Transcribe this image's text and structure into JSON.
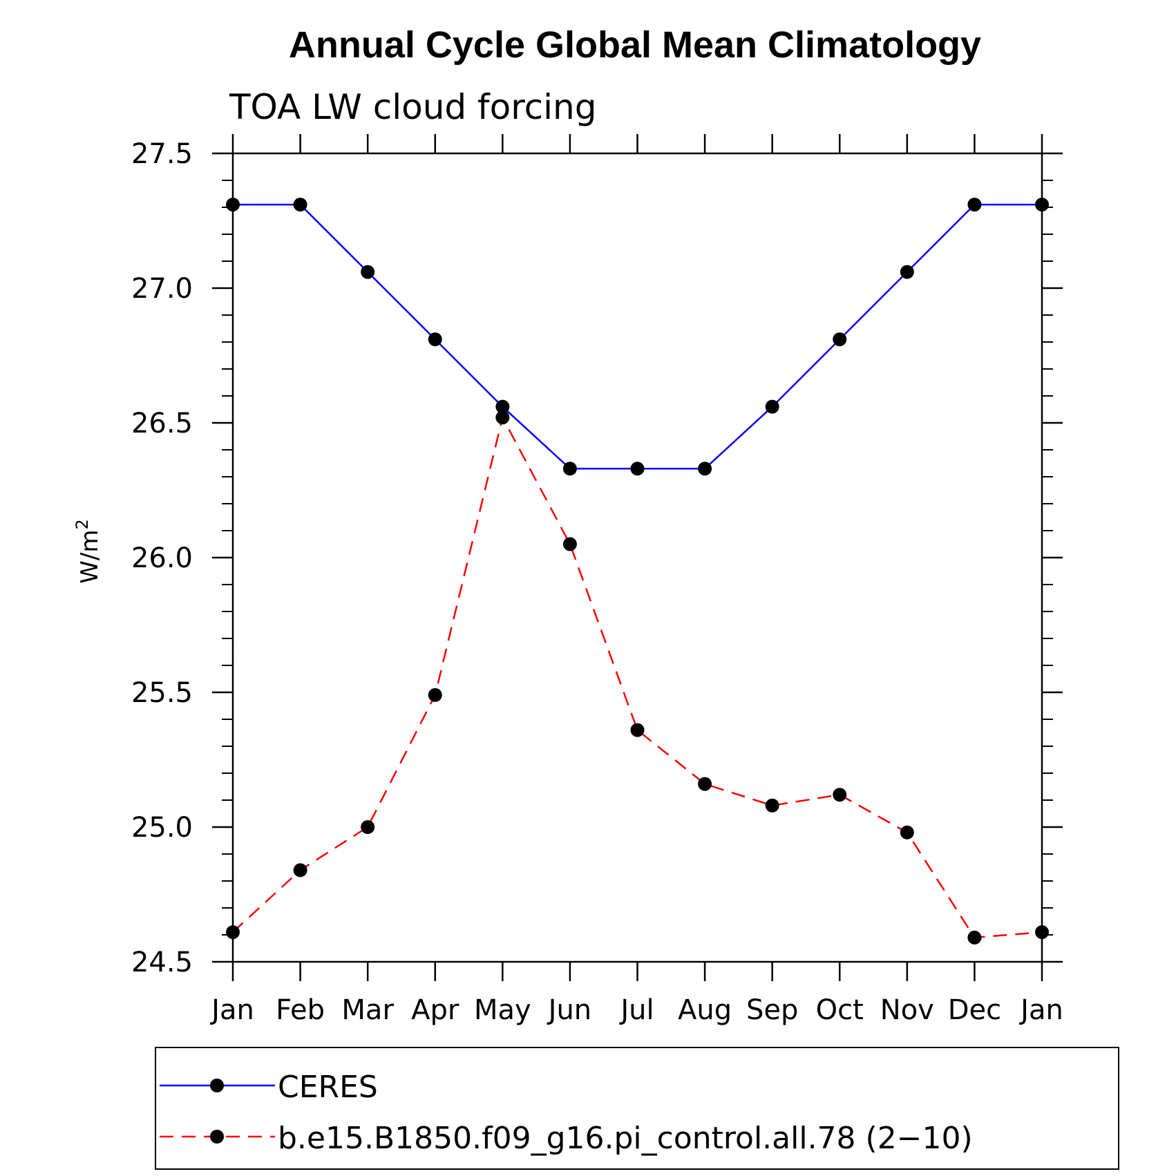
{
  "chart_data": {
    "type": "line",
    "title": "Annual Cycle Global Mean Climatology",
    "subtitle": "TOA LW cloud forcing",
    "xlabel": "",
    "ylabel": "W/m",
    "ylabel_superscript": "2",
    "categories": [
      "Jan",
      "Feb",
      "Mar",
      "Apr",
      "May",
      "Jun",
      "Jul",
      "Aug",
      "Sep",
      "Oct",
      "Nov",
      "Dec",
      "Jan"
    ],
    "ylim": [
      24.5,
      27.5
    ],
    "yticks": [
      24.5,
      25.0,
      25.5,
      26.0,
      26.5,
      27.0,
      27.5
    ],
    "ytick_labels": [
      "24.5",
      "25.0",
      "25.5",
      "26.0",
      "26.5",
      "27.0",
      "27.5"
    ],
    "grid": false,
    "legend_position": "bottom",
    "series": [
      {
        "name": "CERES",
        "color": "#0000ff",
        "style": "solid",
        "marker": "filled-circle",
        "values": [
          27.31,
          27.31,
          27.06,
          26.81,
          26.56,
          26.33,
          26.33,
          26.33,
          26.56,
          26.81,
          27.06,
          27.31,
          27.31
        ]
      },
      {
        "name": "b.e15.B1850.f09_g16.pi_control.all.78 (2−10)",
        "color": "#ff0000",
        "style": "dashed",
        "marker": "filled-circle",
        "values": [
          24.61,
          24.84,
          25.0,
          25.49,
          26.52,
          26.05,
          25.36,
          25.16,
          25.08,
          25.12,
          24.98,
          24.59,
          24.61
        ]
      }
    ]
  }
}
